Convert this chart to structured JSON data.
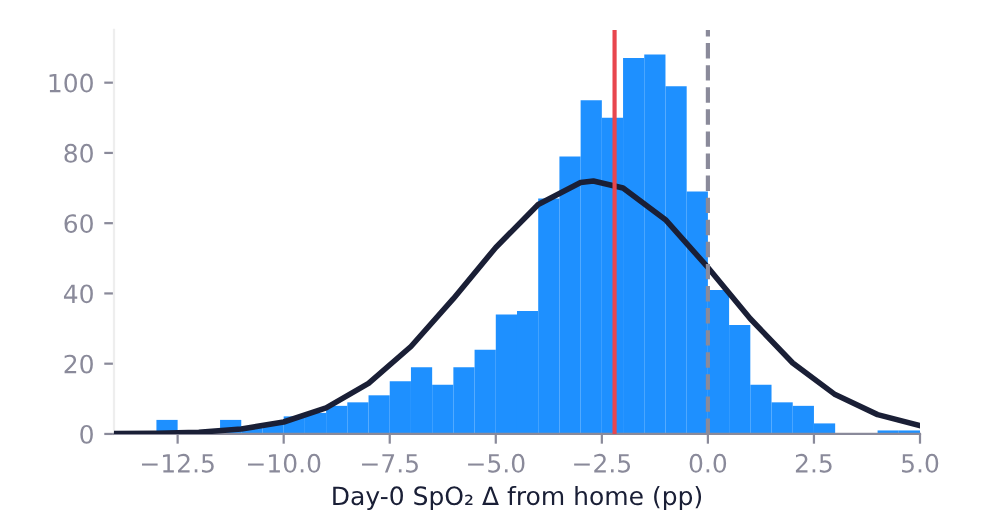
{
  "chart_data": {
    "type": "histogram",
    "xlabel": "Day-0 SpO₂ Δ from home (pp)",
    "bins": [
      -14,
      -13.5,
      -13,
      -12.5,
      -12,
      -11.5,
      -11,
      -10.5,
      -10,
      -9.5,
      -9,
      -8.5,
      -8,
      -7.5,
      -7,
      -6.5,
      -6,
      -5.5,
      -5,
      -4.5,
      -4,
      -3.5,
      -3,
      -2.5,
      -2,
      -1.5,
      -1,
      -0.5,
      0,
      0.5,
      1,
      1.5,
      2,
      2.5,
      3,
      3.5,
      4,
      4.5,
      5
    ],
    "series": [
      {
        "color": "#1e90ff",
        "values": [
          0,
          0,
          4,
          0,
          0,
          4,
          2,
          3,
          5,
          6,
          8,
          9,
          11,
          15,
          19,
          14,
          19,
          24,
          34,
          35,
          67,
          79,
          95,
          90,
          107,
          108,
          99,
          69,
          41,
          31,
          14,
          9,
          8,
          3,
          0,
          0,
          1,
          1
        ]
      },
      {
        "type": "line",
        "color": "#1a1f36",
        "x": [
          -14,
          -13,
          -12,
          -11,
          -10,
          -9,
          -8,
          -7,
          -6,
          -5,
          -4,
          -3,
          -2.7,
          -2,
          -1,
          0,
          1,
          2,
          3,
          4,
          5
        ],
        "values": [
          0.1,
          0.2,
          0.5,
          1.4,
          3.4,
          7.4,
          14.4,
          24.9,
          38.5,
          53.1,
          65.3,
          71.6,
          72,
          70.0,
          61.0,
          47.4,
          32.8,
          20.2,
          11.2,
          5.5,
          2.4
        ]
      }
    ],
    "ref_lines": [
      {
        "axis": "x",
        "value": -2.2,
        "color": "#e8464e",
        "line_style": "solid"
      },
      {
        "axis": "x",
        "value": 0,
        "color": "#8a8a9a",
        "line_style": "dashed"
      }
    ],
    "xlim": [
      -14,
      5
    ],
    "ylim": [
      0,
      115
    ],
    "xticks": [
      {
        "value": -12.5,
        "label": "−12.5"
      },
      {
        "value": -10,
        "label": "−10.0"
      },
      {
        "value": -7.5,
        "label": "−7.5"
      },
      {
        "value": -5,
        "label": "−5.0"
      },
      {
        "value": -2.5,
        "label": "−2.5"
      },
      {
        "value": 0,
        "label": "0.0"
      },
      {
        "value": 2.5,
        "label": "2.5"
      },
      {
        "value": 5,
        "label": "5.0"
      }
    ],
    "yticks": [
      0,
      20,
      40,
      60,
      80,
      100
    ],
    "grid": false
  }
}
